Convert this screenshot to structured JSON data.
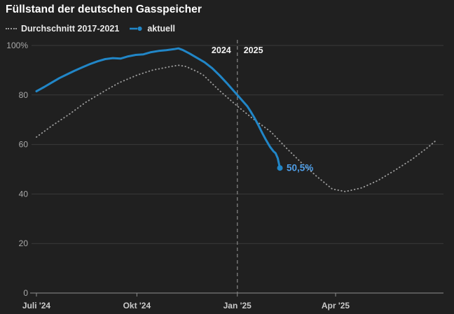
{
  "header": {
    "title": "Füllstand der deutschen Gasspeicher"
  },
  "legend": {
    "average_label": "Durchschnitt 2017-2021",
    "current_label": "aktuell"
  },
  "colors": {
    "background": "#202020",
    "current_line": "#2186c7",
    "average_line": "#9c9c9c",
    "grid": "#3a3a3a",
    "axis": "#8f8f8f",
    "divider": "#7a7a7a",
    "annotation_text": "#4f9fe8",
    "y_label": "#a9a9a9",
    "x_label": "#c9c9c9",
    "year_label": "#f2f2f2"
  },
  "chart_data": {
    "type": "line",
    "title": "Füllstand der deutschen Gasspeicher",
    "ylim": [
      0,
      100
    ],
    "grid": true,
    "legend_position": "top-left",
    "y_ticks": [
      {
        "value": 0,
        "label": "0"
      },
      {
        "value": 20,
        "label": "20"
      },
      {
        "value": 40,
        "label": "40"
      },
      {
        "value": 60,
        "label": "60"
      },
      {
        "value": 80,
        "label": "80"
      },
      {
        "value": 100,
        "label": "100%"
      }
    ],
    "x_ticks": [
      {
        "date": "2024-07-01",
        "label": "Juli '24"
      },
      {
        "date": "2024-10-01",
        "label": "Okt '24"
      },
      {
        "date": "2025-01-01",
        "label": "Jan '25"
      },
      {
        "date": "2025-04-01",
        "label": "Apr '25"
      }
    ],
    "year_divider": {
      "date": "2025-01-01",
      "left_label": "2024",
      "right_label": "2025"
    },
    "annotation": {
      "label": "50,5%",
      "date": "2025-02-09",
      "value": 50.5
    },
    "series": [
      {
        "name": "Durchschnitt 2017-2021",
        "style": "dotted",
        "color": "#9c9c9c",
        "points": [
          {
            "date": "2024-07-01",
            "value": 63.0
          },
          {
            "date": "2024-07-15",
            "value": 67.5
          },
          {
            "date": "2024-08-01",
            "value": 72.5
          },
          {
            "date": "2024-08-15",
            "value": 77.0
          },
          {
            "date": "2024-09-01",
            "value": 81.5
          },
          {
            "date": "2024-09-15",
            "value": 85.0
          },
          {
            "date": "2024-10-01",
            "value": 88.0
          },
          {
            "date": "2024-10-15",
            "value": 90.0
          },
          {
            "date": "2024-11-01",
            "value": 91.5
          },
          {
            "date": "2024-11-08",
            "value": 92.0
          },
          {
            "date": "2024-11-15",
            "value": 91.5
          },
          {
            "date": "2024-11-25",
            "value": 89.5
          },
          {
            "date": "2024-12-01",
            "value": 88.0
          },
          {
            "date": "2024-12-15",
            "value": 82.0
          },
          {
            "date": "2025-01-01",
            "value": 75.5
          },
          {
            "date": "2025-01-15",
            "value": 70.5
          },
          {
            "date": "2025-02-01",
            "value": 65.0
          },
          {
            "date": "2025-02-15",
            "value": 58.5
          },
          {
            "date": "2025-03-01",
            "value": 52.5
          },
          {
            "date": "2025-03-15",
            "value": 47.0
          },
          {
            "date": "2025-03-29",
            "value": 42.0
          },
          {
            "date": "2025-04-10",
            "value": 41.0
          },
          {
            "date": "2025-04-25",
            "value": 42.5
          },
          {
            "date": "2025-05-10",
            "value": 45.5
          },
          {
            "date": "2025-05-25",
            "value": 49.5
          },
          {
            "date": "2025-06-10",
            "value": 54.0
          },
          {
            "date": "2025-06-25",
            "value": 59.0
          },
          {
            "date": "2025-07-03",
            "value": 62.0
          }
        ]
      },
      {
        "name": "aktuell",
        "style": "solid",
        "color": "#2186c7",
        "points": [
          {
            "date": "2024-07-01",
            "value": 81.5
          },
          {
            "date": "2024-07-08",
            "value": 83.2
          },
          {
            "date": "2024-07-15",
            "value": 85.0
          },
          {
            "date": "2024-07-22",
            "value": 86.8
          },
          {
            "date": "2024-07-29",
            "value": 88.3
          },
          {
            "date": "2024-08-05",
            "value": 89.8
          },
          {
            "date": "2024-08-12",
            "value": 91.2
          },
          {
            "date": "2024-08-19",
            "value": 92.5
          },
          {
            "date": "2024-08-26",
            "value": 93.6
          },
          {
            "date": "2024-09-02",
            "value": 94.5
          },
          {
            "date": "2024-09-09",
            "value": 94.9
          },
          {
            "date": "2024-09-16",
            "value": 94.7
          },
          {
            "date": "2024-09-23",
            "value": 95.6
          },
          {
            "date": "2024-09-30",
            "value": 96.2
          },
          {
            "date": "2024-10-07",
            "value": 96.4
          },
          {
            "date": "2024-10-14",
            "value": 97.3
          },
          {
            "date": "2024-10-21",
            "value": 97.8
          },
          {
            "date": "2024-10-28",
            "value": 98.1
          },
          {
            "date": "2024-11-04",
            "value": 98.5
          },
          {
            "date": "2024-11-08",
            "value": 98.8
          },
          {
            "date": "2024-11-12",
            "value": 98.2
          },
          {
            "date": "2024-11-18",
            "value": 96.8
          },
          {
            "date": "2024-11-25",
            "value": 95.0
          },
          {
            "date": "2024-12-02",
            "value": 93.2
          },
          {
            "date": "2024-12-09",
            "value": 90.8
          },
          {
            "date": "2024-12-16",
            "value": 87.8
          },
          {
            "date": "2024-12-23",
            "value": 84.5
          },
          {
            "date": "2024-12-30",
            "value": 81.0
          },
          {
            "date": "2025-01-01",
            "value": 80.0
          },
          {
            "date": "2025-01-06",
            "value": 77.5
          },
          {
            "date": "2025-01-10",
            "value": 75.5
          },
          {
            "date": "2025-01-13",
            "value": 73.5
          },
          {
            "date": "2025-01-17",
            "value": 70.5
          },
          {
            "date": "2025-01-20",
            "value": 68.0
          },
          {
            "date": "2025-01-24",
            "value": 64.5
          },
          {
            "date": "2025-01-27",
            "value": 62.0
          },
          {
            "date": "2025-01-31",
            "value": 59.0
          },
          {
            "date": "2025-02-03",
            "value": 57.3
          },
          {
            "date": "2025-02-05",
            "value": 56.5
          },
          {
            "date": "2025-02-07",
            "value": 54.5
          },
          {
            "date": "2025-02-09",
            "value": 50.5
          }
        ]
      }
    ]
  }
}
